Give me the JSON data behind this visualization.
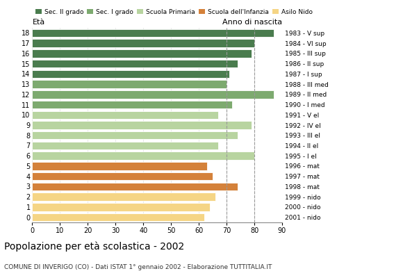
{
  "ages": [
    18,
    17,
    16,
    15,
    14,
    13,
    12,
    11,
    10,
    9,
    8,
    7,
    6,
    5,
    4,
    3,
    2,
    1,
    0
  ],
  "values": [
    87,
    80,
    79,
    74,
    71,
    70,
    87,
    72,
    67,
    79,
    74,
    67,
    80,
    63,
    65,
    74,
    66,
    64,
    62
  ],
  "years": [
    "1983 - V sup",
    "1984 - VI sup",
    "1985 - III sup",
    "1986 - II sup",
    "1987 - I sup",
    "1988 - III med",
    "1989 - II med",
    "1990 - I med",
    "1991 - V el",
    "1992 - IV el",
    "1993 - III el",
    "1994 - II el",
    "1995 - I el",
    "1996 - mat",
    "1997 - mat",
    "1998 - mat",
    "1999 - nido",
    "2000 - nido",
    "2001 - nido"
  ],
  "colors": [
    "#4a7c4e",
    "#4a7c4e",
    "#4a7c4e",
    "#4a7c4e",
    "#4a7c4e",
    "#7daa6f",
    "#7daa6f",
    "#7daa6f",
    "#b8d4a0",
    "#b8d4a0",
    "#b8d4a0",
    "#b8d4a0",
    "#b8d4a0",
    "#d4813a",
    "#d4813a",
    "#d4813a",
    "#f5d585",
    "#f5d585",
    "#f5d585"
  ],
  "legend_labels": [
    "Sec. II grado",
    "Sec. I grado",
    "Scuola Primaria",
    "Scuola dell'Infanzia",
    "Asilo Nido"
  ],
  "legend_colors": [
    "#4a7c4e",
    "#7daa6f",
    "#b8d4a0",
    "#d4813a",
    "#f5d585"
  ],
  "title": "Popolazione per età scolastica - 2002",
  "subtitle": "COMUNE DI INVERIGO (CO) - Dati ISTAT 1° gennaio 2002 - Elaborazione TUTTITALIA.IT",
  "xlabel_age": "Età",
  "xlabel_year": "Anno di nascita",
  "xlim": [
    0,
    90
  ],
  "xticks": [
    0,
    10,
    20,
    30,
    40,
    50,
    60,
    70,
    80,
    90
  ],
  "bar_height": 0.78,
  "background_color": "#ffffff",
  "grid_color": "#999999",
  "dashed_lines": [
    70,
    80
  ]
}
